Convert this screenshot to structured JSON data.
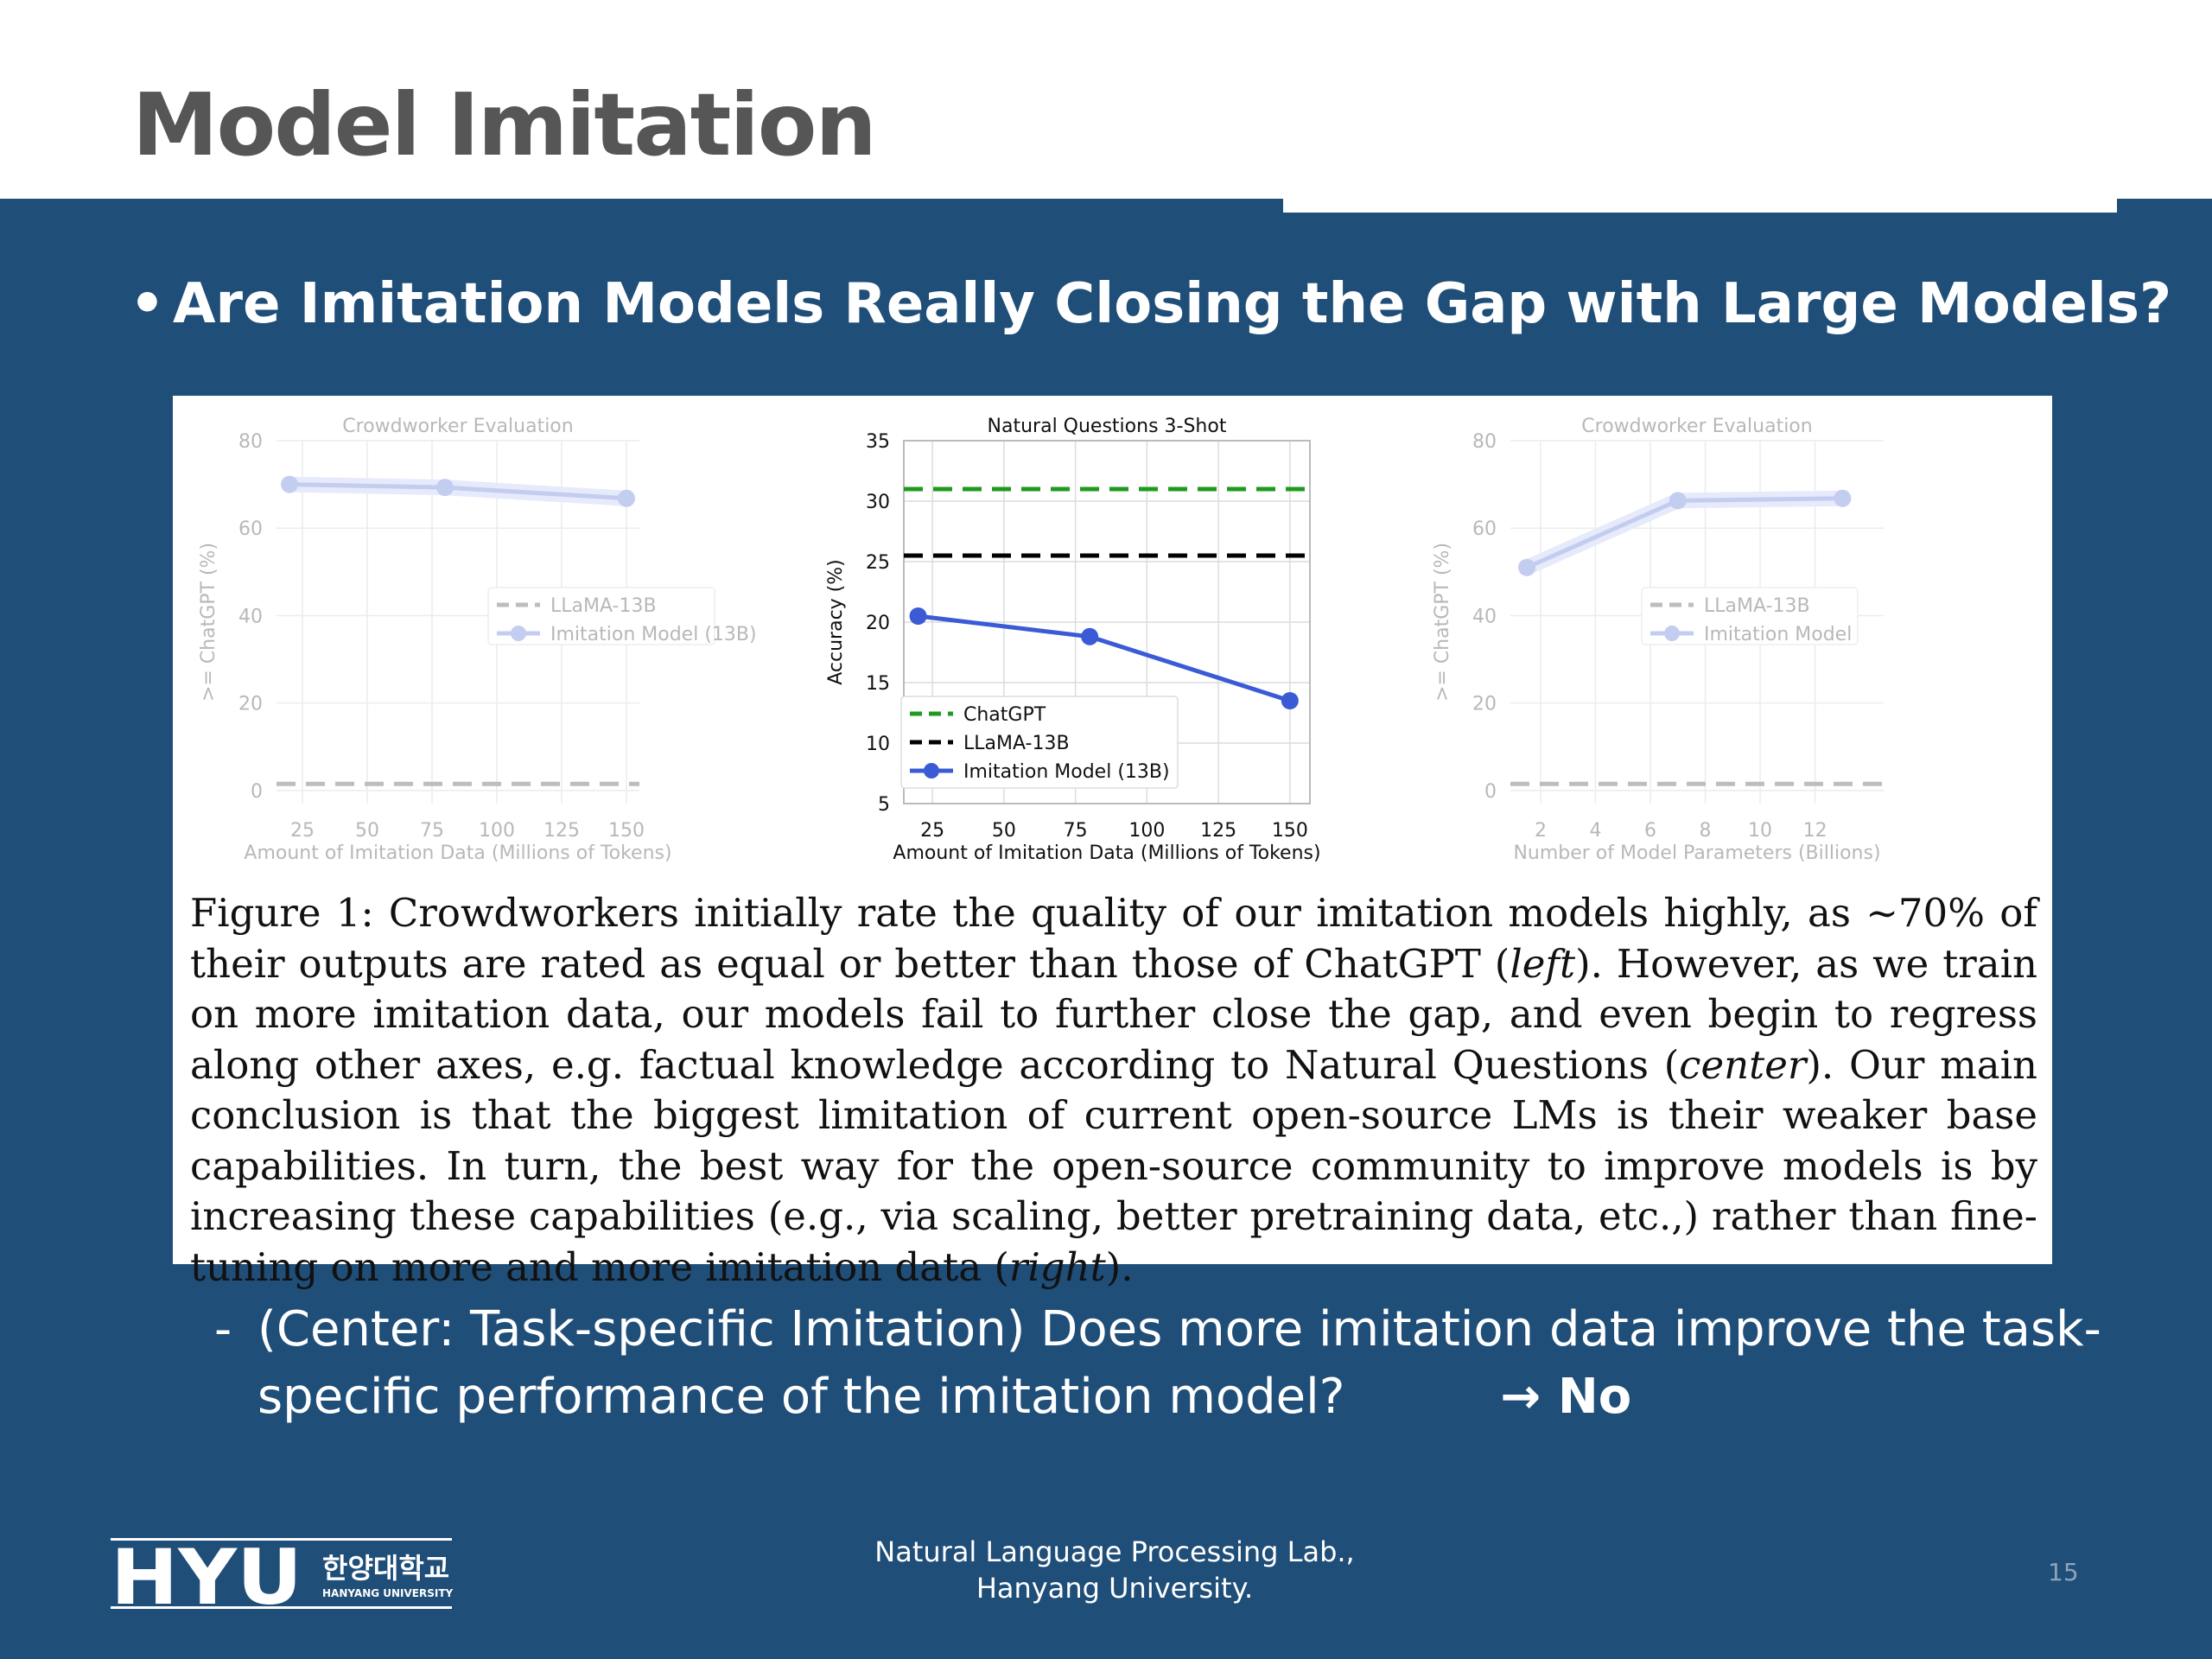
{
  "slide": {
    "title": "Model Imitation",
    "bullet": "Are Imitation Models Really Closing the Gap with Large Models?",
    "sub_bullet_dash": "-",
    "sub_bullet_text": "(Center: Task-specific Imitation) Does more imitation data improve the task-specific performance of the imitation model?",
    "answer_arrow": "→",
    "answer": "No",
    "footer_lab_line1": "Natural Language Processing Lab.,",
    "footer_lab_line2": "Hanyang University.",
    "page_number": "15",
    "logo_text": "HYU",
    "logo_korean": "한양대학교",
    "logo_english": "HANYANG UNIVERSITY"
  },
  "figure": {
    "caption_parts": [
      "Figure 1: Crowdworkers initially rate the quality of our imitation models highly, as ∼70% of their outputs are rated as equal or better than those of ChatGPT (",
      "left",
      "). However, as we train on more imitation data, our models fail to further close the gap, and even begin to regress along other axes, e.g. factual knowledge according to Natural Questions (",
      "center",
      "). Our main conclusion is that the biggest limitation of current open-source LMs is their weaker base capabilities. In turn, the best way for the open-source community to improve models is by increasing these capabilities (e.g., via scaling, better pretraining data, etc.,) rather than fine-tuning on more and more imitation data (",
      "right",
      ")."
    ]
  },
  "colors": {
    "slide_blue": "#1f4e79",
    "title_gray": "#565656",
    "faded_line": "#c3cdf0",
    "faded_dash": "#bdbdbd",
    "blue_line": "#3b5bd6",
    "green_dash": "#1f9a1f",
    "black_dash": "#000000"
  },
  "chart_data": [
    {
      "type": "line",
      "title": "Crowdworker Evaluation",
      "xlabel": "Amount of Imitation Data (Millions of Tokens)",
      "ylabel": ">= ChatGPT (%)",
      "xlim": [
        15,
        155
      ],
      "ylim": [
        -3,
        80
      ],
      "xticks": [
        25,
        50,
        75,
        100,
        125,
        150
      ],
      "yticks": [
        0,
        20,
        40,
        60,
        80
      ],
      "grid": true,
      "faded": true,
      "legend_position": "center-right",
      "series": [
        {
          "name": "LLaMA-13B",
          "style": "dashed",
          "x": [
            15,
            155
          ],
          "y": [
            1.5,
            1.5
          ]
        },
        {
          "name": "Imitation Model (13B)",
          "style": "solid-marker",
          "x": [
            20,
            80,
            150
          ],
          "y": [
            70,
            69.3,
            66.8
          ]
        }
      ]
    },
    {
      "type": "line",
      "title": "Natural Questions 3-Shot",
      "xlabel": "Amount of Imitation Data (Millions of Tokens)",
      "ylabel": "Accuracy (%)",
      "xlim": [
        15,
        157
      ],
      "ylim": [
        5,
        35
      ],
      "xticks": [
        25,
        50,
        75,
        100,
        125,
        150
      ],
      "yticks": [
        5,
        10,
        15,
        20,
        25,
        30,
        35
      ],
      "grid": true,
      "faded": false,
      "legend_position": "lower-left",
      "series": [
        {
          "name": "ChatGPT",
          "style": "dashed",
          "x": [
            15,
            157
          ],
          "y": [
            31,
            31
          ]
        },
        {
          "name": "LLaMA-13B",
          "style": "dashed",
          "x": [
            15,
            157
          ],
          "y": [
            25.5,
            25.5
          ]
        },
        {
          "name": "Imitation Model (13B)",
          "style": "solid-marker",
          "x": [
            20,
            80,
            150
          ],
          "y": [
            20.5,
            18.8,
            13.5
          ]
        }
      ]
    },
    {
      "type": "line",
      "title": "Crowdworker Evaluation",
      "xlabel": "Number of Model Parameters (Billions)",
      "ylabel": ">= ChatGPT (%)",
      "xlim": [
        0.9,
        14.5
      ],
      "ylim": [
        -3,
        80
      ],
      "xticks": [
        2,
        4,
        6,
        8,
        10,
        12
      ],
      "yticks": [
        0,
        20,
        40,
        60,
        80
      ],
      "grid": true,
      "faded": true,
      "legend_position": "center-right",
      "series": [
        {
          "name": "LLaMA-13B",
          "style": "dashed",
          "x": [
            0.9,
            14.5
          ],
          "y": [
            1.5,
            1.5
          ]
        },
        {
          "name": "Imitation Model",
          "style": "solid-marker",
          "x": [
            1.5,
            7,
            13
          ],
          "y": [
            51,
            66.3,
            66.8
          ]
        }
      ]
    }
  ]
}
